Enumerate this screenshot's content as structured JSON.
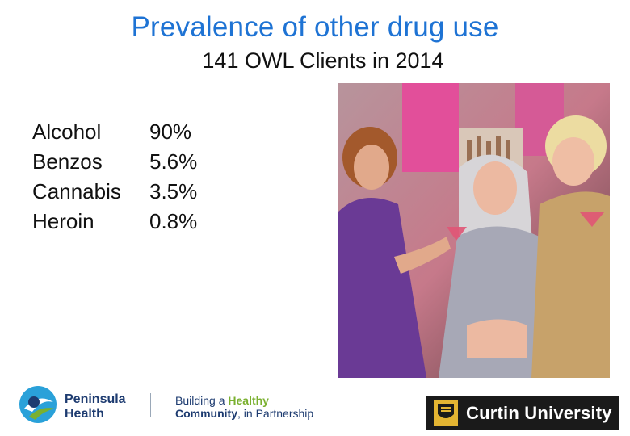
{
  "slide": {
    "title": "Prevalence of other drug use",
    "subtitle": "141 OWL Clients in 2014",
    "stats": [
      {
        "label": "Alcohol",
        "value": "90%"
      },
      {
        "label": "Benzos",
        "value": "5.6%"
      },
      {
        "label": "Cannabis",
        "value": "3.5%"
      },
      {
        "label": "Heroin",
        "value": "0.8%"
      }
    ]
  },
  "footer": {
    "peninsula_line1": "Peninsula",
    "peninsula_line2": "Health",
    "tagline_part1": "Building a ",
    "tagline_highlight": "Healthy",
    "tagline_part2": "Community",
    "tagline_part3": ", in Partnership",
    "curtin_text": "Curtin University"
  },
  "colors": {
    "title": "#1e73d4",
    "brand_navy": "#1d3b70",
    "brand_green": "#7ab02f",
    "curtin_gold": "#e3b432"
  }
}
